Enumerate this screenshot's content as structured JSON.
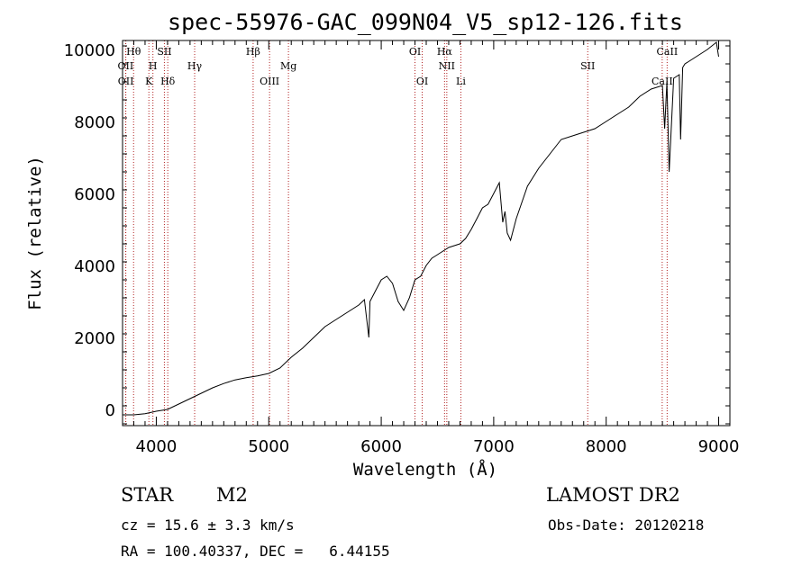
{
  "chart_data": {
    "type": "line",
    "title": "spec-55976-GAC_099N04_V5_sp12-126.fits",
    "xlabel": "Wavelength (Å)",
    "ylabel": "Flux (relative)",
    "xlim": [
      3700,
      9100
    ],
    "ylim": [
      -450,
      10250
    ],
    "xticks": [
      4000,
      5000,
      6000,
      7000,
      8000,
      9000
    ],
    "yticks": [
      0,
      2000,
      4000,
      6000,
      8000,
      10000
    ],
    "grid": false,
    "series": [
      {
        "x": [
          3700,
          3800,
          3900,
          4000,
          4100,
          4200,
          4300,
          4400,
          4500,
          4600,
          4700,
          4800,
          4900,
          5000,
          5100,
          5200,
          5300,
          5400,
          5500,
          5600,
          5700,
          5800,
          5850,
          5890,
          5900,
          5950,
          6000,
          6050,
          6100,
          6150,
          6200,
          6250,
          6300,
          6350,
          6400,
          6450,
          6500,
          6550,
          6600,
          6650,
          6700,
          6750,
          6800,
          6850,
          6900,
          6950,
          7000,
          7050,
          7080,
          7100,
          7120,
          7150,
          7200,
          7300,
          7400,
          7500,
          7600,
          7700,
          7800,
          7900,
          8000,
          8100,
          8200,
          8300,
          8400,
          8500,
          8520,
          8540,
          8560,
          8600,
          8650,
          8662,
          8680,
          8700,
          8800,
          8900,
          8980,
          9000
        ],
        "y": [
          -150,
          -150,
          -120,
          -50,
          0,
          150,
          300,
          450,
          600,
          720,
          820,
          880,
          930,
          1000,
          1150,
          1450,
          1700,
          2000,
          2300,
          2500,
          2700,
          2900,
          3050,
          2000,
          3000,
          3300,
          3600,
          3700,
          3500,
          3000,
          2750,
          3100,
          3600,
          3700,
          4000,
          4200,
          4300,
          4400,
          4500,
          4550,
          4600,
          4750,
          5000,
          5300,
          5600,
          5700,
          6000,
          6300,
          5200,
          5500,
          4900,
          4700,
          5300,
          6200,
          6700,
          7100,
          7500,
          7600,
          7700,
          7800,
          8000,
          8200,
          8400,
          8700,
          8900,
          9000,
          7800,
          9100,
          6600,
          9200,
          9300,
          7500,
          9500,
          9600,
          9800,
          10000,
          10200,
          9800
        ]
      }
    ],
    "annotations": {
      "line_labels": [
        {
          "text": "Hθ",
          "x": 3798
        },
        {
          "text": "OII",
          "x": 3727
        },
        {
          "text": "OII",
          "x": 3729
        },
        {
          "text": "H",
          "x": 3970
        },
        {
          "text": "K",
          "x": 3934
        },
        {
          "text": "SII",
          "x": 4072
        },
        {
          "text": "Hδ",
          "x": 4102
        },
        {
          "text": "Hγ",
          "x": 4341
        },
        {
          "text": "Hβ",
          "x": 4861
        },
        {
          "text": "OIII",
          "x": 5007
        },
        {
          "text": "Mg",
          "x": 5175
        },
        {
          "text": "OI",
          "x": 6300
        },
        {
          "text": "OI",
          "x": 6364
        },
        {
          "text": "Hα",
          "x": 6563
        },
        {
          "text": "NII",
          "x": 6583
        },
        {
          "text": "Li",
          "x": 6708
        },
        {
          "text": "SII",
          "x": 7836
        },
        {
          "text": "CaII",
          "x": 8542
        },
        {
          "text": "CaII",
          "x": 8498
        }
      ]
    }
  },
  "info": {
    "object_class": "STAR",
    "subclass": "M2",
    "survey": "LAMOST DR2",
    "cz": "cz = 15.6 ± 3.3 km/s",
    "obs_date": "Obs-Date: 20120218",
    "coords": "RA = 100.40337, DEC =   6.44155"
  },
  "colors": {
    "spectrum": "#000000",
    "line_markers": "#b22222",
    "axes": "#000000"
  }
}
